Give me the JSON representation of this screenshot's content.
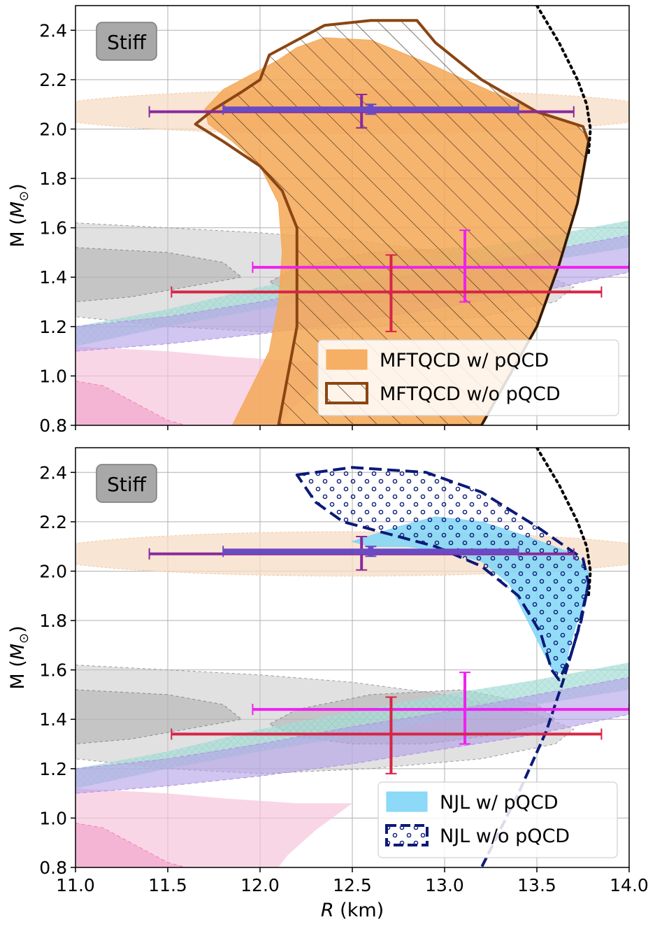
{
  "chart_data": [
    {
      "type": "line",
      "panel": "top",
      "xlabel": "",
      "ylabel": "M (M_⊙)",
      "ylabel_parts": {
        "main": "M (",
        "sym": "M",
        "sub": "⊙",
        "end": ")"
      },
      "xlim": [
        11.0,
        14.0
      ],
      "ylim": [
        0.8,
        2.5
      ],
      "xticks": [
        11.0,
        11.5,
        12.0,
        12.5,
        13.0,
        13.5,
        14.0
      ],
      "yticks": [
        0.8,
        1.0,
        1.2,
        1.4,
        1.6,
        1.8,
        2.0,
        2.2,
        2.4
      ],
      "ytick_labels": [
        "0.8",
        "1.0",
        "1.2",
        "1.4",
        "1.6",
        "1.8",
        "2.0",
        "2.2",
        "2.4"
      ],
      "grid": true,
      "badge": "Stiff",
      "legend_position": "lower-right",
      "legend": [
        {
          "label": "MFTQCD w/ pQCD",
          "style": "filled",
          "color": "#f5a856"
        },
        {
          "label": "MFTQCD w/o pQCD",
          "style": "hatched",
          "color": "#8b4513"
        }
      ],
      "series": [
        {
          "name": "MFTQCD w/ pQCD",
          "kind": "band",
          "color": "#f5a856",
          "polygon": [
            [
              11.85,
              0.8
            ],
            [
              11.95,
              0.95
            ],
            [
              12.05,
              1.1
            ],
            [
              12.1,
              1.3
            ],
            [
              12.12,
              1.5
            ],
            [
              12.1,
              1.7
            ],
            [
              12.0,
              1.85
            ],
            [
              11.85,
              1.95
            ],
            [
              11.72,
              2.02
            ],
            [
              11.7,
              2.08
            ],
            [
              11.8,
              2.16
            ],
            [
              11.95,
              2.22
            ],
            [
              12.1,
              2.28
            ],
            [
              12.2,
              2.33
            ],
            [
              12.35,
              2.37
            ],
            [
              12.6,
              2.36
            ],
            [
              12.9,
              2.27
            ],
            [
              13.2,
              2.17
            ],
            [
              13.5,
              2.07
            ],
            [
              13.72,
              2.02
            ],
            [
              13.78,
              1.95
            ],
            [
              13.72,
              1.7
            ],
            [
              13.62,
              1.45
            ],
            [
              13.5,
              1.2
            ],
            [
              13.35,
              1.0
            ],
            [
              13.2,
              0.8
            ]
          ]
        },
        {
          "name": "MFTQCD w/o pQCD",
          "kind": "hatched-band",
          "color": "#8b4513",
          "polygon": [
            [
              12.1,
              0.8
            ],
            [
              12.15,
              1.0
            ],
            [
              12.2,
              1.2
            ],
            [
              12.2,
              1.4
            ],
            [
              12.2,
              1.6
            ],
            [
              12.12,
              1.75
            ],
            [
              12.0,
              1.85
            ],
            [
              11.8,
              1.95
            ],
            [
              11.65,
              2.02
            ],
            [
              11.75,
              2.08
            ],
            [
              11.9,
              2.15
            ],
            [
              12.0,
              2.2
            ],
            [
              12.05,
              2.3
            ],
            [
              12.2,
              2.36
            ],
            [
              12.35,
              2.42
            ],
            [
              12.6,
              2.44
            ],
            [
              12.85,
              2.44
            ],
            [
              12.95,
              2.35
            ],
            [
              13.2,
              2.2
            ],
            [
              13.5,
              2.07
            ],
            [
              13.75,
              2.01
            ],
            [
              13.78,
              1.95
            ],
            [
              13.72,
              1.7
            ],
            [
              13.62,
              1.45
            ],
            [
              13.5,
              1.2
            ],
            [
              13.35,
              1.0
            ],
            [
              13.2,
              0.8
            ]
          ]
        },
        {
          "name": "causality boundary",
          "kind": "dotted-line",
          "color": "#000000",
          "points": [
            [
              13.5,
              2.5
            ],
            [
              13.62,
              2.35
            ],
            [
              13.72,
              2.2
            ],
            [
              13.77,
              2.1
            ],
            [
              13.79,
              2.0
            ],
            [
              13.78,
              1.9
            ]
          ]
        }
      ]
    },
    {
      "type": "line",
      "panel": "bottom",
      "xlabel": "R (km)",
      "xlabel_parts": {
        "var": "R",
        "unit": " (km)"
      },
      "ylabel": "M (M_⊙)",
      "ylabel_parts": {
        "main": "M (",
        "sym": "M",
        "sub": "⊙",
        "end": ")"
      },
      "xlim": [
        11.0,
        14.0
      ],
      "ylim": [
        0.8,
        2.5
      ],
      "xticks": [
        11.0,
        11.5,
        12.0,
        12.5,
        13.0,
        13.5,
        14.0
      ],
      "xtick_labels": [
        "11.0",
        "11.5",
        "12.0",
        "12.5",
        "13.0",
        "13.5",
        "14.0"
      ],
      "yticks": [
        0.8,
        1.0,
        1.2,
        1.4,
        1.6,
        1.8,
        2.0,
        2.2,
        2.4
      ],
      "ytick_labels": [
        "0.8",
        "1.0",
        "1.2",
        "1.4",
        "1.6",
        "1.8",
        "2.0",
        "2.2",
        "2.4"
      ],
      "grid": true,
      "badge": "Stiff",
      "legend_position": "lower-right",
      "legend": [
        {
          "label": "NJL w/ pQCD",
          "style": "filled",
          "color": "#7fd6f7"
        },
        {
          "label": "NJL w/o pQCD",
          "style": "dotted-hatch",
          "color": "#0b1a78"
        }
      ],
      "series": [
        {
          "name": "NJL w/ pQCD",
          "kind": "band",
          "color": "#7fd6f7",
          "polygon": [
            [
              12.5,
              2.12
            ],
            [
              12.75,
              2.18
            ],
            [
              12.95,
              2.22
            ],
            [
              13.2,
              2.2
            ],
            [
              13.45,
              2.14
            ],
            [
              13.7,
              2.07
            ],
            [
              13.78,
              2.0
            ],
            [
              13.77,
              1.9
            ],
            [
              13.72,
              1.8
            ],
            [
              13.68,
              1.7
            ],
            [
              13.65,
              1.6
            ],
            [
              13.6,
              1.58
            ],
            [
              13.55,
              1.65
            ],
            [
              13.45,
              1.8
            ],
            [
              13.35,
              1.95
            ],
            [
              13.2,
              2.04
            ],
            [
              13.0,
              2.08
            ],
            [
              12.8,
              2.1
            ],
            [
              12.6,
              2.1
            ]
          ]
        },
        {
          "name": "NJL w/o pQCD",
          "kind": "dotted-band",
          "color": "#0b1a78",
          "polygon": [
            [
              12.2,
              2.39
            ],
            [
              12.5,
              2.42
            ],
            [
              12.9,
              2.4
            ],
            [
              13.2,
              2.32
            ],
            [
              13.5,
              2.18
            ],
            [
              13.75,
              2.05
            ],
            [
              13.78,
              1.95
            ],
            [
              13.74,
              1.8
            ],
            [
              13.68,
              1.65
            ],
            [
              13.62,
              1.56
            ],
            [
              13.58,
              1.6
            ],
            [
              13.52,
              1.75
            ],
            [
              13.4,
              1.9
            ],
            [
              13.2,
              2.02
            ],
            [
              12.95,
              2.1
            ],
            [
              12.7,
              2.15
            ],
            [
              12.45,
              2.2
            ],
            [
              12.3,
              2.28
            ]
          ]
        },
        {
          "name": "causality boundary",
          "kind": "dotted-line",
          "color": "#000000",
          "points": [
            [
              13.5,
              2.5
            ],
            [
              13.62,
              2.35
            ],
            [
              13.72,
              2.2
            ],
            [
              13.77,
              2.1
            ],
            [
              13.79,
              2.0
            ],
            [
              13.78,
              1.9
            ]
          ]
        },
        {
          "name": "lower branch",
          "kind": "dashed-line",
          "color": "#0b1a78",
          "points": [
            [
              13.78,
              1.95
            ],
            [
              13.72,
              1.75
            ],
            [
              13.64,
              1.55
            ],
            [
              13.55,
              1.35
            ],
            [
              13.4,
              1.1
            ],
            [
              13.2,
              0.8
            ]
          ]
        }
      ]
    }
  ],
  "shared_error_bars": [
    {
      "name": "purple-bar",
      "color": "#8a2a9e",
      "x": 12.55,
      "y": 2.07,
      "xerr": [
        11.4,
        13.7
      ],
      "yerr": [
        2.005,
        2.14
      ]
    },
    {
      "name": "violet-thick-bar",
      "color": "#6a4bc4",
      "x": 12.6,
      "y": 2.08,
      "xerr": [
        11.8,
        13.4
      ],
      "yerr": [
        2.06,
        2.1
      ]
    },
    {
      "name": "magenta-bar",
      "color": "#ee22ee",
      "x": 13.11,
      "y": 1.44,
      "xerr": [
        11.96,
        14.0
      ],
      "yerr": [
        1.3,
        1.59
      ]
    },
    {
      "name": "crimson-bar",
      "color": "#d62546",
      "x": 12.71,
      "y": 1.34,
      "xerr": [
        11.52,
        13.85
      ],
      "yerr": [
        1.18,
        1.49
      ]
    }
  ],
  "background_regions": [
    {
      "name": "peach-ellipse",
      "color": "#f7dcc4",
      "cx": 12.5,
      "cy": 2.07,
      "rx": 1.7,
      "ry": 0.09
    },
    {
      "name": "grey-region-outer",
      "color": "#c8c8c8",
      "cx": 12.1,
      "cy": 1.4,
      "rx": 1.6,
      "ry": 0.2
    },
    {
      "name": "grey-region-inner",
      "color": "#a9a9a9",
      "cx": 12.0,
      "cy": 1.38,
      "rx": 1.0,
      "ry": 0.13
    },
    {
      "name": "teal-band",
      "color": "#9fd9d3"
    },
    {
      "name": "lavender-band",
      "color": "#b39ee8"
    },
    {
      "name": "pink-region",
      "color": "#f6c5dc"
    }
  ]
}
